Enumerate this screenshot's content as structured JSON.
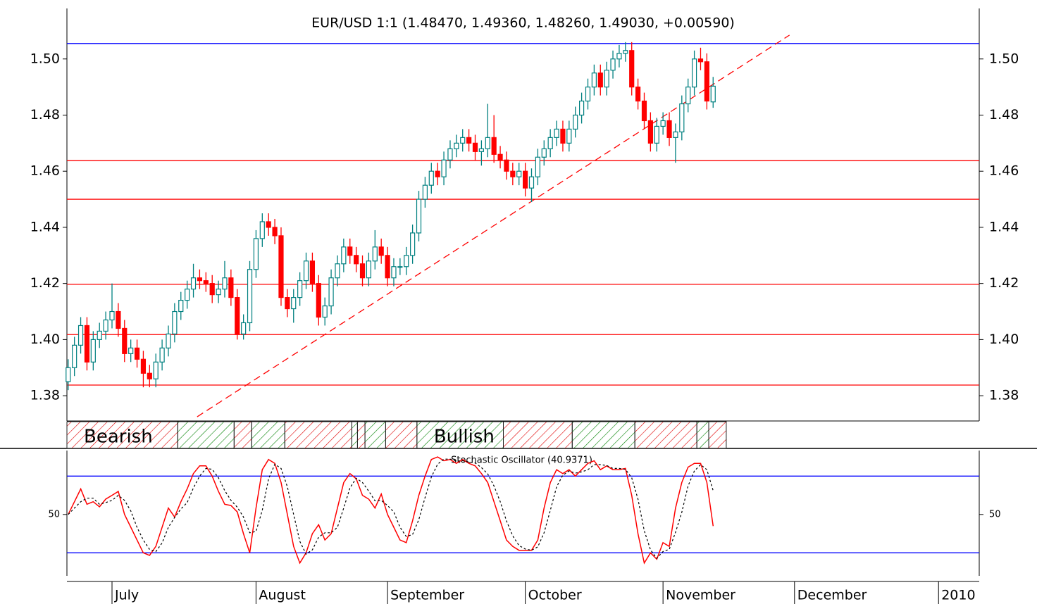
{
  "chart_data": [
    {
      "type": "candlestick",
      "title": "EUR/USD 1:1 (1.48470, 1.49360, 1.48260, 1.49030, +0.00590)",
      "up_color": "#008080",
      "down_color": "#ff0000",
      "xlim": [
        -0.2,
        145.5
      ],
      "ylim": [
        1.371,
        1.518
      ],
      "yticks": [
        1.38,
        {
          "value": 1.4,
          "label": "1.40"
        },
        1.42,
        1.44,
        1.46,
        1.48,
        {
          "value": 1.5,
          "label": "1.50"
        }
      ],
      "hlines": [
        {
          "value": 1.5055,
          "color": "#0000ff"
        },
        {
          "value": 1.4638,
          "color": "#ff0000"
        },
        {
          "value": 1.45,
          "color": "#ff0000"
        },
        {
          "value": 1.4197,
          "color": "#ff0000"
        },
        {
          "value": 1.4018,
          "color": "#ff0000"
        },
        {
          "value": 1.3838,
          "color": "#ff0000"
        }
      ],
      "trendline": {
        "x": [
          20.6,
          115.2
        ],
        "y": [
          1.3725,
          1.5085
        ],
        "color": "#ff0000"
      },
      "band": [
        {
          "from": -0.2,
          "to": 17.5,
          "color": "#e00000",
          "label": "Bearish"
        },
        {
          "from": 17.5,
          "to": 26.5,
          "color": "#008000"
        },
        {
          "from": 26.5,
          "to": 29.3,
          "color": "#e00000"
        },
        {
          "from": 29.3,
          "to": 34.6,
          "color": "#008000"
        },
        {
          "from": 34.6,
          "to": 45.3,
          "color": "#e00000"
        },
        {
          "from": 45.3,
          "to": 46.2,
          "color": "#008000"
        },
        {
          "from": 46.2,
          "to": 47.4,
          "color": "#e00000"
        },
        {
          "from": 47.4,
          "to": 50.7,
          "color": "#008000"
        },
        {
          "from": 50.7,
          "to": 55.7,
          "color": "#e00000"
        },
        {
          "from": 55.7,
          "to": 69.5,
          "color": "#008000",
          "label": "Bullish"
        },
        {
          "from": 69.5,
          "to": 80.5,
          "color": "#e00000"
        },
        {
          "from": 80.5,
          "to": 90.5,
          "color": "#008000"
        },
        {
          "from": 90.5,
          "to": 100.4,
          "color": "#e00000"
        },
        {
          "from": 100.4,
          "to": 102.3,
          "color": "#008000"
        },
        {
          "from": 102.3,
          "to": 105.1,
          "color": "#e00000"
        }
      ],
      "candles": [
        [
          1.385,
          1.393,
          1.382,
          1.39
        ],
        [
          1.39,
          1.401,
          1.387,
          1.398
        ],
        [
          1.398,
          1.408,
          1.395,
          1.405
        ],
        [
          1.405,
          1.408,
          1.389,
          1.392
        ],
        [
          1.392,
          1.403,
          1.389,
          1.4
        ],
        [
          1.4,
          1.406,
          1.397,
          1.403
        ],
        [
          1.403,
          1.41,
          1.4,
          1.407
        ],
        [
          1.407,
          1.42,
          1.404,
          1.41
        ],
        [
          1.41,
          1.413,
          1.401,
          1.404
        ],
        [
          1.404,
          1.407,
          1.392,
          1.395
        ],
        [
          1.395,
          1.4,
          1.392,
          1.397
        ],
        [
          1.397,
          1.4,
          1.39,
          1.393
        ],
        [
          1.393,
          1.396,
          1.383,
          1.388
        ],
        [
          1.388,
          1.391,
          1.383,
          1.386
        ],
        [
          1.386,
          1.395,
          1.383,
          1.392
        ],
        [
          1.392,
          1.4,
          1.389,
          1.397
        ],
        [
          1.397,
          1.405,
          1.394,
          1.402
        ],
        [
          1.402,
          1.413,
          1.399,
          1.41
        ],
        [
          1.41,
          1.417,
          1.407,
          1.414
        ],
        [
          1.414,
          1.421,
          1.411,
          1.418
        ],
        [
          1.418,
          1.427,
          1.415,
          1.422
        ],
        [
          1.422,
          1.425,
          1.418,
          1.421
        ],
        [
          1.421,
          1.424,
          1.417,
          1.42
        ],
        [
          1.42,
          1.423,
          1.413,
          1.416
        ],
        [
          1.416,
          1.421,
          1.413,
          1.418
        ],
        [
          1.418,
          1.428,
          1.415,
          1.422
        ],
        [
          1.422,
          1.425,
          1.412,
          1.415
        ],
        [
          1.415,
          1.418,
          1.4,
          1.402
        ],
        [
          1.402,
          1.409,
          1.4,
          1.406
        ],
        [
          1.406,
          1.428,
          1.403,
          1.425
        ],
        [
          1.425,
          1.439,
          1.422,
          1.436
        ],
        [
          1.436,
          1.445,
          1.433,
          1.442
        ],
        [
          1.442,
          1.445,
          1.437,
          1.44
        ],
        [
          1.44,
          1.443,
          1.434,
          1.437
        ],
        [
          1.437,
          1.44,
          1.412,
          1.415
        ],
        [
          1.415,
          1.418,
          1.408,
          1.411
        ],
        [
          1.411,
          1.418,
          1.406,
          1.415
        ],
        [
          1.415,
          1.424,
          1.412,
          1.421
        ],
        [
          1.421,
          1.431,
          1.418,
          1.428
        ],
        [
          1.428,
          1.431,
          1.417,
          1.42
        ],
        [
          1.42,
          1.423,
          1.405,
          1.408
        ],
        [
          1.408,
          1.415,
          1.405,
          1.412
        ],
        [
          1.412,
          1.425,
          1.409,
          1.422
        ],
        [
          1.422,
          1.43,
          1.419,
          1.427
        ],
        [
          1.427,
          1.436,
          1.424,
          1.433
        ],
        [
          1.433,
          1.436,
          1.427,
          1.43
        ],
        [
          1.43,
          1.433,
          1.424,
          1.427
        ],
        [
          1.427,
          1.43,
          1.419,
          1.422
        ],
        [
          1.422,
          1.431,
          1.419,
          1.428
        ],
        [
          1.428,
          1.439,
          1.425,
          1.433
        ],
        [
          1.433,
          1.436,
          1.427,
          1.43
        ],
        [
          1.43,
          1.433,
          1.419,
          1.422
        ],
        [
          1.422,
          1.429,
          1.419,
          1.426
        ],
        [
          1.426,
          1.429,
          1.423,
          1.426
        ],
        [
          1.426,
          1.433,
          1.423,
          1.43
        ],
        [
          1.43,
          1.441,
          1.427,
          1.438
        ],
        [
          1.438,
          1.453,
          1.435,
          1.45
        ],
        [
          1.45,
          1.458,
          1.447,
          1.455
        ],
        [
          1.455,
          1.463,
          1.452,
          1.46
        ],
        [
          1.46,
          1.463,
          1.455,
          1.458
        ],
        [
          1.458,
          1.467,
          1.455,
          1.464
        ],
        [
          1.464,
          1.471,
          1.461,
          1.468
        ],
        [
          1.468,
          1.473,
          1.465,
          1.47
        ],
        [
          1.47,
          1.475,
          1.467,
          1.472
        ],
        [
          1.472,
          1.475,
          1.467,
          1.47
        ],
        [
          1.47,
          1.473,
          1.464,
          1.467
        ],
        [
          1.467,
          1.471,
          1.462,
          1.468
        ],
        [
          1.468,
          1.484,
          1.465,
          1.472
        ],
        [
          1.472,
          1.48,
          1.463,
          1.466
        ],
        [
          1.466,
          1.469,
          1.461,
          1.464
        ],
        [
          1.464,
          1.467,
          1.457,
          1.46
        ],
        [
          1.46,
          1.463,
          1.455,
          1.458
        ],
        [
          1.458,
          1.463,
          1.455,
          1.46
        ],
        [
          1.46,
          1.463,
          1.451,
          1.454
        ],
        [
          1.454,
          1.461,
          1.449,
          1.458
        ],
        [
          1.458,
          1.468,
          1.455,
          1.465
        ],
        [
          1.465,
          1.471,
          1.462,
          1.468
        ],
        [
          1.468,
          1.475,
          1.465,
          1.472
        ],
        [
          1.472,
          1.478,
          1.469,
          1.475
        ],
        [
          1.475,
          1.478,
          1.467,
          1.47
        ],
        [
          1.47,
          1.478,
          1.467,
          1.475
        ],
        [
          1.475,
          1.483,
          1.472,
          1.48
        ],
        [
          1.48,
          1.488,
          1.477,
          1.485
        ],
        [
          1.485,
          1.493,
          1.482,
          1.49
        ],
        [
          1.49,
          1.498,
          1.487,
          1.495
        ],
        [
          1.495,
          1.498,
          1.487,
          1.49
        ],
        [
          1.49,
          1.499,
          1.487,
          1.496
        ],
        [
          1.496,
          1.503,
          1.493,
          1.5
        ],
        [
          1.5,
          1.505,
          1.497,
          1.502
        ],
        [
          1.502,
          1.506,
          1.499,
          1.503
        ],
        [
          1.503,
          1.506,
          1.487,
          1.49
        ],
        [
          1.49,
          1.493,
          1.482,
          1.485
        ],
        [
          1.485,
          1.488,
          1.475,
          1.478
        ],
        [
          1.478,
          1.481,
          1.467,
          1.47
        ],
        [
          1.47,
          1.479,
          1.467,
          1.476
        ],
        [
          1.476,
          1.481,
          1.473,
          1.478
        ],
        [
          1.478,
          1.481,
          1.469,
          1.472
        ],
        [
          1.472,
          1.477,
          1.463,
          1.474
        ],
        [
          1.474,
          1.487,
          1.471,
          1.484
        ],
        [
          1.484,
          1.493,
          1.481,
          1.49
        ],
        [
          1.49,
          1.503,
          1.487,
          1.5
        ],
        [
          1.5,
          1.504,
          1.496,
          1.499
        ],
        [
          1.499,
          1.502,
          1.482,
          1.485
        ],
        [
          1.4847,
          1.4936,
          1.4826,
          1.4903
        ]
      ]
    },
    {
      "type": "line",
      "title": "Stochastic Oscillator (40.9371)",
      "xlim": [
        -0.2,
        145.5
      ],
      "ylim": [
        2,
        100
      ],
      "yticks": [
        50
      ],
      "levels": [
        80,
        20
      ],
      "level_color": "#0000ff",
      "xticks": [
        {
          "value": 7,
          "label": "July"
        },
        {
          "value": 30,
          "label": "August"
        },
        {
          "value": 51,
          "label": "September"
        },
        {
          "value": 73,
          "label": "October"
        },
        {
          "value": 95,
          "label": "November"
        },
        {
          "value": 116,
          "label": "December"
        },
        {
          "value": 139,
          "label": "2010"
        }
      ],
      "series": [
        {
          "color": "#ff0000",
          "dash": false,
          "values": [
            50,
            60,
            70,
            58,
            60,
            56,
            62,
            65,
            68,
            50,
            40,
            30,
            20,
            18,
            25,
            40,
            55,
            48,
            60,
            70,
            82,
            88,
            88,
            80,
            68,
            58,
            57,
            52,
            35,
            20,
            55,
            85,
            93,
            90,
            75,
            50,
            25,
            12,
            20,
            35,
            42,
            30,
            35,
            55,
            75,
            82,
            78,
            65,
            62,
            55,
            66,
            50,
            40,
            30,
            28,
            45,
            65,
            80,
            93,
            95,
            92,
            93,
            90,
            93,
            90,
            88,
            82,
            75,
            60,
            45,
            30,
            25,
            22,
            22,
            22,
            30,
            55,
            75,
            85,
            82,
            85,
            80,
            85,
            90,
            92,
            85,
            88,
            85,
            85,
            86,
            65,
            35,
            12,
            20,
            15,
            28,
            25,
            55,
            75,
            87,
            90,
            90,
            75,
            40.9371
          ]
        },
        {
          "color": "#000000",
          "dash": true,
          "values": [
            50,
            55,
            60,
            62.7,
            62.7,
            58,
            59.3,
            61,
            65,
            61,
            52.7,
            40,
            30,
            22.7,
            21,
            27.7,
            40,
            47.7,
            54.3,
            59.3,
            70.7,
            80,
            86,
            85.3,
            78.7,
            68.7,
            61,
            55.7,
            48,
            35.7,
            36.7,
            53.3,
            77.7,
            89.3,
            86,
            71.7,
            50,
            29,
            19,
            22.3,
            32.3,
            35.7,
            35.7,
            40,
            55,
            70.7,
            78.3,
            75,
            68.3,
            60.7,
            61,
            57,
            52,
            40,
            32.7,
            34.3,
            46,
            63.3,
            79.3,
            89.3,
            93.3,
            93.3,
            91.7,
            92,
            91,
            90.3,
            86.7,
            81.7,
            72.3,
            60,
            45,
            33.3,
            25.7,
            23,
            22,
            24.7,
            35.7,
            53.3,
            71.7,
            80.7,
            84,
            82.3,
            83.3,
            85,
            89,
            89,
            88.3,
            86,
            86,
            85.3,
            78.7,
            62,
            37.3,
            22.3,
            15.7,
            21,
            22.7,
            36,
            51.7,
            72.3,
            84,
            89,
            85,
            68.6
          ]
        }
      ]
    }
  ]
}
